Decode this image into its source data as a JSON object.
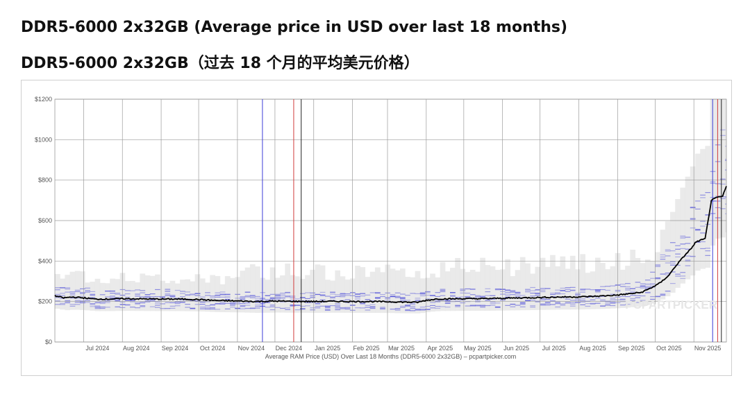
{
  "headline_en": "DDR5-6000 2x32GB (Average price in USD over last 18 months)",
  "headline_zh": "DDR5-6000 2x32GB（过去 18 个月的平均美元价格）",
  "chart_data": {
    "type": "line",
    "caption": "Average RAM Price (USD) Over Last 18 Months (DDR5-6000 2x32GB) – pcpartpicker.com",
    "watermark": "PCPARTPICKER",
    "ylim": [
      0,
      1200
    ],
    "y_ticks": [
      0,
      200,
      400,
      600,
      800,
      1000,
      1200
    ],
    "y_tick_labels": [
      "$0",
      "$200",
      "$400",
      "$600",
      "$800",
      "$1000",
      "$1200"
    ],
    "x_range": [
      "2024-06-08",
      "2025-11-27"
    ],
    "x_tick_labels": [
      "Jul 2024",
      "Aug 2024",
      "Sep 2024",
      "Oct 2024",
      "Nov 2024",
      "Dec 2024",
      "Jan 2025",
      "Feb 2025",
      "Mar 2025",
      "Apr 2025",
      "May 2025",
      "Jun 2025",
      "Jul 2025",
      "Aug 2025",
      "Sep 2025",
      "Oct 2025",
      "Nov 2025"
    ],
    "x_tick_dates": [
      "2024-07-01",
      "2024-08-01",
      "2024-09-01",
      "2024-10-01",
      "2024-11-01",
      "2024-12-01",
      "2025-01-01",
      "2025-02-01",
      "2025-03-01",
      "2025-04-01",
      "2025-05-01",
      "2025-06-01",
      "2025-07-01",
      "2025-08-01",
      "2025-09-01",
      "2025-10-01",
      "2025-11-01"
    ],
    "grid": true,
    "series": [
      {
        "type": "line",
        "color": "#000000",
        "x": [
          "2024-06-08",
          "2024-06-15",
          "2024-06-22",
          "2024-07-01",
          "2024-07-10",
          "2024-07-20",
          "2024-08-01",
          "2024-08-15",
          "2024-09-01",
          "2024-09-15",
          "2024-10-01",
          "2024-10-15",
          "2024-11-01",
          "2024-11-15",
          "2024-12-01",
          "2024-12-15",
          "2025-01-01",
          "2025-01-15",
          "2025-02-01",
          "2025-02-15",
          "2025-03-01",
          "2025-03-15",
          "2025-03-25",
          "2025-04-01",
          "2025-04-10",
          "2025-04-20",
          "2025-05-01",
          "2025-05-15",
          "2025-06-01",
          "2025-06-15",
          "2025-07-01",
          "2025-07-15",
          "2025-08-01",
          "2025-08-15",
          "2025-09-01",
          "2025-09-10",
          "2025-09-20",
          "2025-09-28",
          "2025-10-05",
          "2025-10-12",
          "2025-10-18",
          "2025-10-25",
          "2025-10-31",
          "2025-11-02",
          "2025-11-05",
          "2025-11-10",
          "2025-11-15",
          "2025-11-20",
          "2025-11-24",
          "2025-11-27"
        ],
        "y": [
          228,
          218,
          222,
          218,
          212,
          212,
          214,
          213,
          212,
          212,
          210,
          205,
          203,
          200,
          202,
          201,
          200,
          201,
          200,
          200,
          199,
          197,
          196,
          206,
          213,
          213,
          214,
          214,
          216,
          218,
          220,
          222,
          223,
          226,
          232,
          238,
          245,
          268,
          292,
          330,
          380,
          430,
          470,
          490,
          500,
          510,
          700,
          715,
          720,
          770
        ]
      }
    ],
    "bands": [
      {
        "color": "#e6e6e6",
        "description": "grey min-max price range"
      },
      {
        "color": "#4a4ad8",
        "description": "blue individual retailer prices"
      }
    ],
    "vertical_markers": [
      {
        "date": "2024-11-21",
        "color": "#3b3bd6"
      },
      {
        "date": "2024-12-16",
        "color": "#d03a3a"
      },
      {
        "date": "2024-12-22",
        "color": "#222222"
      },
      {
        "date": "2025-11-16",
        "color": "#3b3bd6"
      },
      {
        "date": "2025-11-20",
        "color": "#d03a3a"
      },
      {
        "date": "2025-11-23",
        "color": "#222222"
      }
    ]
  }
}
